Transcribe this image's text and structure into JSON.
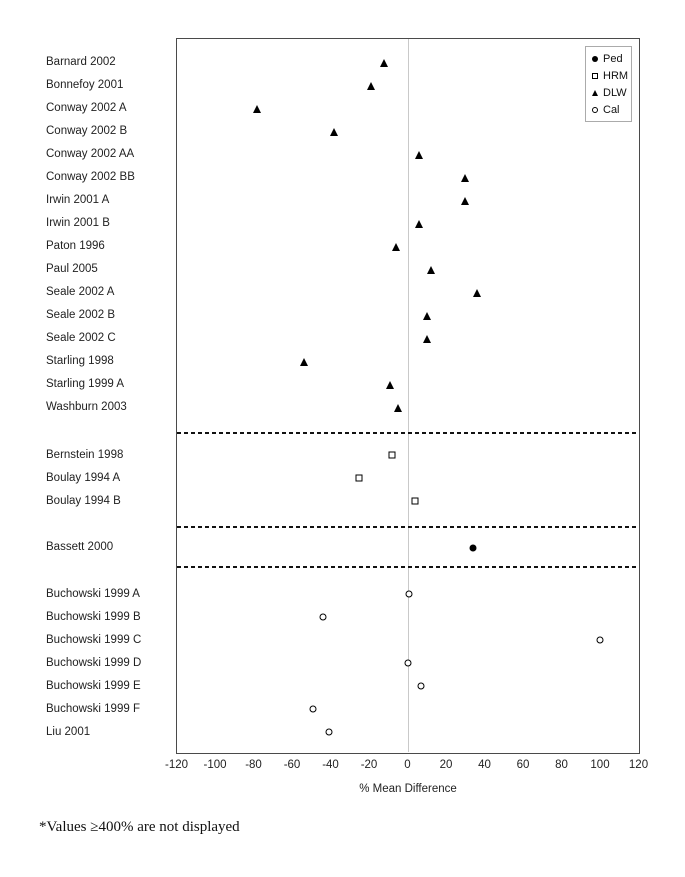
{
  "chart_data": {
    "type": "scatter",
    "title": "",
    "xlabel": "% Mean Difference",
    "ylabel": "",
    "xlim": [
      -120,
      120
    ],
    "x_ticks": [
      -120,
      -100,
      -80,
      -60,
      -40,
      -20,
      0,
      20,
      40,
      60,
      80,
      100,
      120
    ],
    "grid": false,
    "zero_reference_line": true,
    "legend_position": "top-right",
    "legend": [
      {
        "label": "Ped",
        "marker": "filled-circle"
      },
      {
        "label": "HRM",
        "marker": "open-square"
      },
      {
        "label": "DLW",
        "marker": "filled-triangle"
      },
      {
        "label": "Cal",
        "marker": "open-circle"
      }
    ],
    "group_markers": {
      "Ped": "filled-circle",
      "HRM": "open-square",
      "DLW": "filled-triangle",
      "Cal": "open-circle"
    },
    "rows": [
      {
        "label": "Barnard 2002",
        "group": "DLW",
        "value": -12
      },
      {
        "label": "Bonnefoy 2001",
        "group": "DLW",
        "value": -19
      },
      {
        "label": "Conway 2002 A",
        "group": "DLW",
        "value": -78
      },
      {
        "label": "Conway 2002 B",
        "group": "DLW",
        "value": -38
      },
      {
        "label": "Conway 2002 AA",
        "group": "DLW",
        "value": 6
      },
      {
        "label": "Conway 2002 BB",
        "group": "DLW",
        "value": 30
      },
      {
        "label": "Irwin 2001 A",
        "group": "DLW",
        "value": 30
      },
      {
        "label": "Irwin 2001 B",
        "group": "DLW",
        "value": 6
      },
      {
        "label": "Paton 1996",
        "group": "DLW",
        "value": -6
      },
      {
        "label": "Paul 2005",
        "group": "DLW",
        "value": 12
      },
      {
        "label": "Seale 2002 A",
        "group": "DLW",
        "value": 36
      },
      {
        "label": "Seale 2002 B",
        "group": "DLW",
        "value": 10
      },
      {
        "label": "Seale 2002 C",
        "group": "DLW",
        "value": 10
      },
      {
        "label": "Starling 1998",
        "group": "DLW",
        "value": -54
      },
      {
        "label": "Starling 1999 A",
        "group": "DLW",
        "value": -9
      },
      {
        "label": "Washburn 2003",
        "group": "DLW",
        "value": -5
      },
      {
        "label": "Bernstein 1998",
        "group": "HRM",
        "value": -8
      },
      {
        "label": "Boulay 1994 A",
        "group": "HRM",
        "value": -25
      },
      {
        "label": "Boulay 1994 B",
        "group": "HRM",
        "value": 4
      },
      {
        "label": "Bassett 2000",
        "group": "Ped",
        "value": 34
      },
      {
        "label": "Buchowski 1999 A",
        "group": "Cal",
        "value": 1
      },
      {
        "label": "Buchowski 1999 B",
        "group": "Cal",
        "value": -44
      },
      {
        "label": "Buchowski 1999 C",
        "group": "Cal",
        "value": 100
      },
      {
        "label": "Buchowski 1999 D",
        "group": "Cal",
        "value": 0
      },
      {
        "label": "Buchowski 1999 E",
        "group": "Cal",
        "value": 7
      },
      {
        "label": "Buchowski 1999 F",
        "group": "Cal",
        "value": -49
      },
      {
        "label": "Liu 2001",
        "group": "Cal",
        "value": -41
      }
    ]
  },
  "footnote": "*Values ≥400% are not displayed"
}
